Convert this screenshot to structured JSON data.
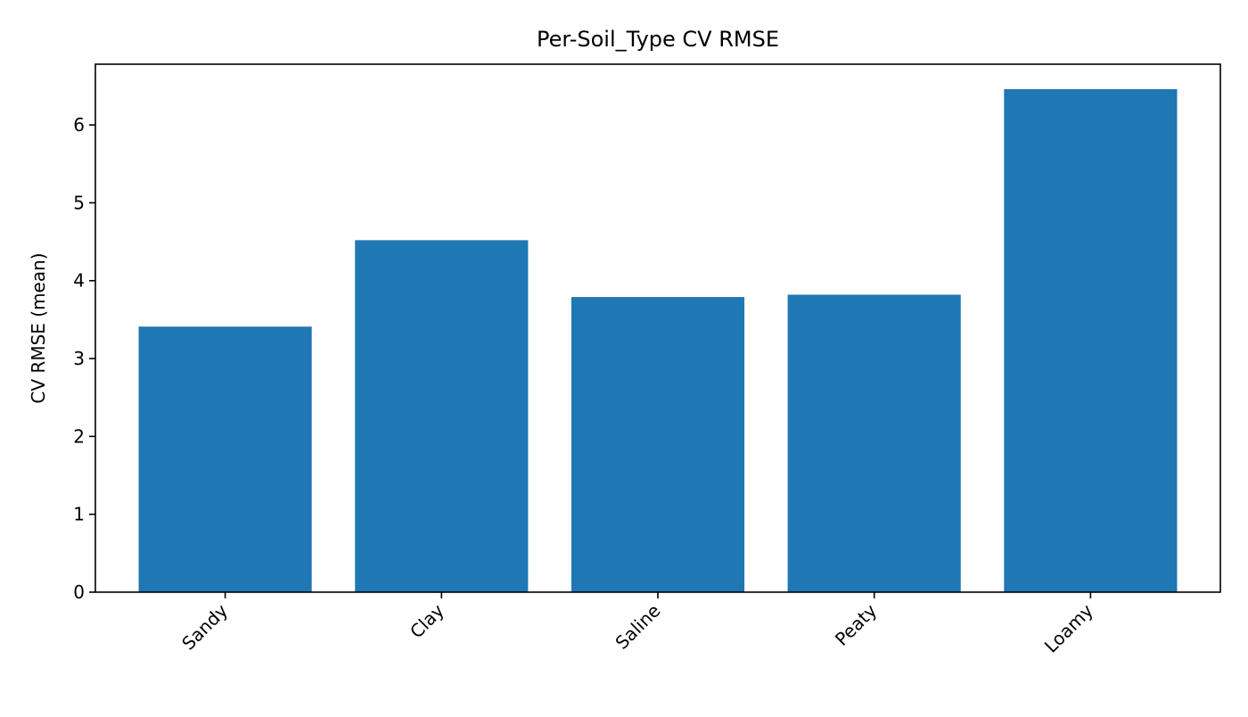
{
  "chart_data": {
    "type": "bar",
    "title": "Per-Soil_Type CV RMSE",
    "xlabel": "",
    "ylabel": "CV RMSE (mean)",
    "categories": [
      "Sandy",
      "Clay",
      "Saline",
      "Peaty",
      "Loamy"
    ],
    "values": [
      3.41,
      4.52,
      3.79,
      3.82,
      6.46
    ],
    "ylim": [
      0,
      6.78
    ],
    "yticks": [
      0,
      1,
      2,
      3,
      4,
      5,
      6
    ],
    "grid": false,
    "legend": "none",
    "bar_color": "#1f77b4"
  }
}
